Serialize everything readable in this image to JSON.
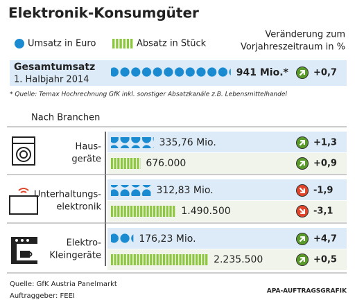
{
  "chart_data": {
    "type": "infographic",
    "title": "Elektronik-Konsumgüter",
    "legend": {
      "umsatz": "Umsatz in Euro",
      "absatz": "Absatz in Stück"
    },
    "colors": {
      "umsatz": "#1a8bd1",
      "absatz": "#8dc63f",
      "up": "#5a9a2a",
      "down": "#e0452b"
    },
    "change_header": [
      "Veränderung zum",
      "Vorjahreszeitraum in %"
    ],
    "total": {
      "label": "Gesamtumsatz",
      "period": "1. Halbjahr 2014",
      "value": 941,
      "value_label": "941 Mio.*",
      "change": 0.7,
      "change_label": "+0,7"
    },
    "footnote": "* Quelle: Temax Hochrechnung GfK inkl. sonstiger Absatzkanäle z.B. Lebensmittelhandel",
    "section": "Nach Branchen",
    "rows": [
      {
        "label": [
          "Haus-",
          "geräte"
        ],
        "umsatz": 335.76,
        "umsatz_label": "335,76 Mio.",
        "umsatz_change": 1.3,
        "umsatz_change_label": "+1,3",
        "absatz": 676000,
        "absatz_label": "676.000",
        "absatz_change": 0.9,
        "absatz_change_label": "+0,9"
      },
      {
        "label": [
          "Unterhaltungs-",
          "elektronik"
        ],
        "umsatz": 312.83,
        "umsatz_label": "312,83 Mio.",
        "umsatz_change": -1.9,
        "umsatz_change_label": "-1,9",
        "absatz": 1490500,
        "absatz_label": "1.490.500",
        "absatz_change": -3.1,
        "absatz_change_label": "-3,1"
      },
      {
        "label": [
          "Elektro-",
          "Kleingeräte"
        ],
        "umsatz": 176.23,
        "umsatz_label": "176,23 Mio.",
        "umsatz_change": 4.7,
        "umsatz_change_label": "+4,7",
        "absatz": 2235500,
        "absatz_label": "2.235.500",
        "absatz_change": 0.5,
        "absatz_change_label": "+0,5"
      }
    ],
    "source": "Quelle: GfK Austria Panelmarkt",
    "client": "Auftraggeber: FEEI",
    "credit": "APA-AUFTRAGSGRAFIK"
  }
}
